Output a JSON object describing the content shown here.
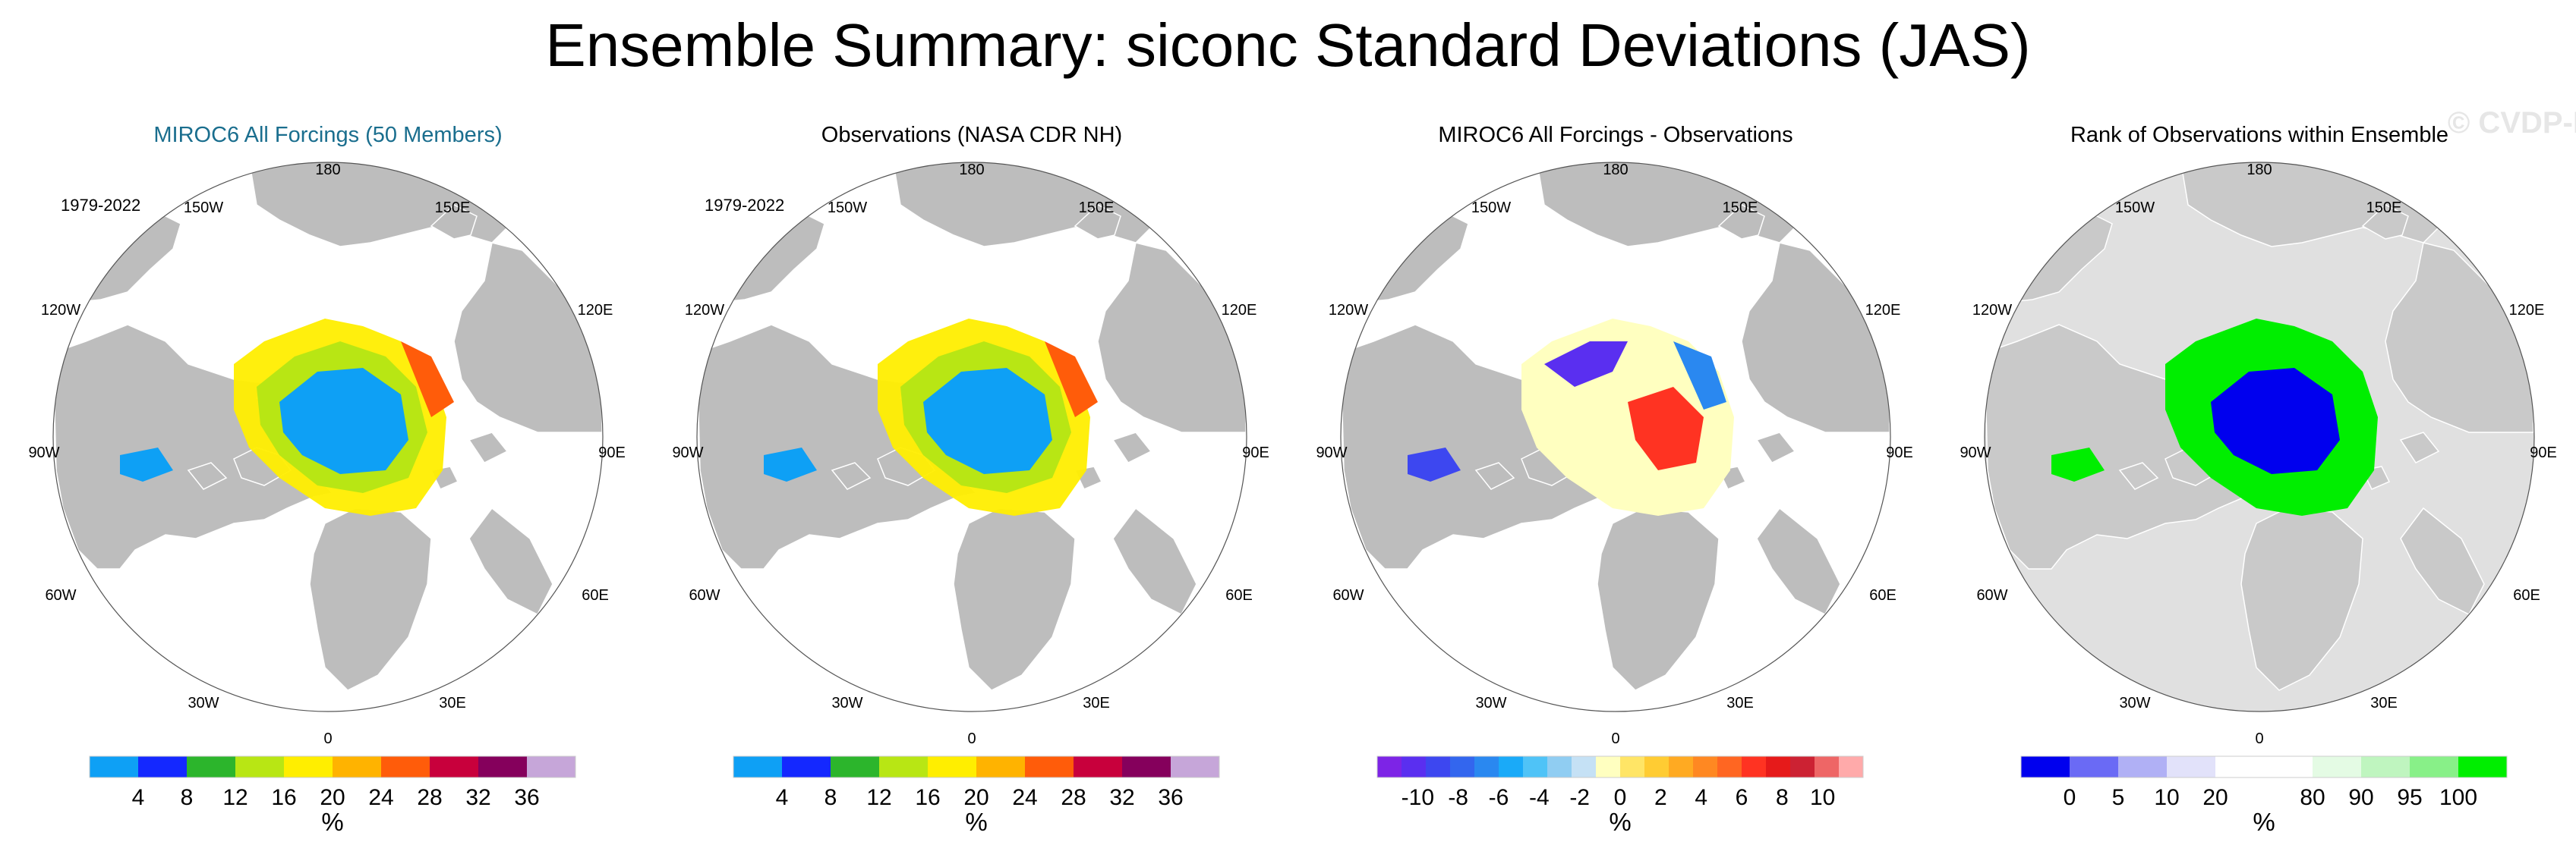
{
  "title": "Ensemble Summary: siconc Standard Deviations (JAS)",
  "watermark": "© CVDP-LE",
  "lon_labels": [
    "180",
    "150W",
    "150E",
    "120W",
    "120E",
    "90W",
    "90E",
    "60W",
    "60E",
    "30W",
    "30E",
    "0"
  ],
  "colors": {
    "land": "#bdbdbd",
    "ocean": "#ffffff",
    "title_accent": "#1a6e8e"
  },
  "panels": [
    {
      "title": "MIROC6 All Forcings (50 Members)",
      "title_color": "#1a6e8e",
      "period": "1979-2022",
      "unit": "%",
      "colorbar": {
        "colors": [
          "#0ea0f5",
          "#1428ff",
          "#2cb52c",
          "#b8e614",
          "#ffee00",
          "#ffb300",
          "#ff5c0a",
          "#c8003c",
          "#85005c",
          "#c6a6d9"
        ],
        "labels": [
          "4",
          "8",
          "12",
          "16",
          "20",
          "24",
          "28",
          "32",
          "36"
        ]
      }
    },
    {
      "title": "Observations (NASA CDR NH)",
      "title_color": "#000000",
      "period": "1979-2022",
      "unit": "%",
      "colorbar": {
        "colors": [
          "#0ea0f5",
          "#1428ff",
          "#2cb52c",
          "#b8e614",
          "#ffee00",
          "#ffb300",
          "#ff5c0a",
          "#c8003c",
          "#85005c",
          "#c6a6d9"
        ],
        "labels": [
          "4",
          "8",
          "12",
          "16",
          "20",
          "24",
          "28",
          "32",
          "36"
        ]
      }
    },
    {
      "title": "MIROC6 All Forcings - Observations",
      "title_color": "#000000",
      "period": "",
      "unit": "%",
      "colorbar": {
        "colors": [
          "#7d24e6",
          "#5a2ff0",
          "#3d47f0",
          "#3366ee",
          "#2a88f0",
          "#1aaaf8",
          "#4fc3f7",
          "#90cdf2",
          "#c5e1f5",
          "#ffffc0",
          "#ffe566",
          "#ffcc33",
          "#ffaa22",
          "#ff8822",
          "#ff6622",
          "#ff3322",
          "#e61a1a",
          "#cc2233",
          "#ee6666",
          "#ffaaaa"
        ],
        "labels": [
          "-10",
          "-8",
          "-6",
          "-4",
          "-2",
          "0",
          "2",
          "4",
          "6",
          "8",
          "10"
        ]
      }
    },
    {
      "title": "Rank of Observations within Ensemble",
      "title_color": "#000000",
      "period": "",
      "unit": "%",
      "colorbar": {
        "colors": [
          "#0000ee",
          "#6a6af5",
          "#b0b0f5",
          "#e2e2fa",
          "#ffffff",
          "#ffffff",
          "#e4fbe4",
          "#bff5bf",
          "#88f088",
          "#00ee00"
        ],
        "labels": [
          "0",
          "5",
          "10",
          "20",
          "80",
          "90",
          "95",
          "100"
        ]
      }
    }
  ]
}
